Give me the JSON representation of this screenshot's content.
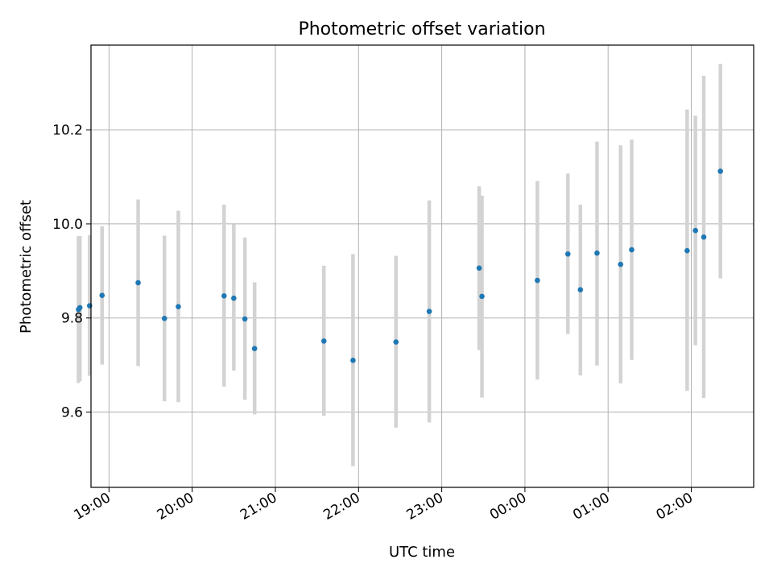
{
  "chart_data": {
    "type": "scatter",
    "title": "Photometric offset variation",
    "xlabel": "UTC time",
    "ylabel": "Photometric offset",
    "x_axis": "time (hours, UTC)",
    "xlim": [
      "18:47",
      "02:45"
    ],
    "ylim": [
      9.44,
      10.38
    ],
    "x_ticks": [
      "19:00",
      "20:00",
      "21:00",
      "22:00",
      "23:00",
      "00:00",
      "01:00",
      "02:00"
    ],
    "y_ticks": [
      9.6,
      9.8,
      10.0,
      10.2
    ],
    "grid": true,
    "point_color": "#1f77b4",
    "errorbar_color": "#d3d3d3",
    "points": [
      {
        "time": "18:38",
        "offset": 9.818,
        "low": 9.662,
        "high": 9.974
      },
      {
        "time": "18:39",
        "offset": 9.822,
        "low": 9.666,
        "high": 9.974
      },
      {
        "time": "18:46",
        "offset": 9.826,
        "low": 9.677,
        "high": 9.976
      },
      {
        "time": "18:55",
        "offset": 9.848,
        "low": 9.701,
        "high": 9.995
      },
      {
        "time": "19:21",
        "offset": 9.875,
        "low": 9.698,
        "high": 10.052
      },
      {
        "time": "19:40",
        "offset": 9.799,
        "low": 9.623,
        "high": 9.975
      },
      {
        "time": "19:50",
        "offset": 9.824,
        "low": 9.621,
        "high": 10.028
      },
      {
        "time": "20:23",
        "offset": 9.847,
        "low": 9.654,
        "high": 10.041
      },
      {
        "time": "20:30",
        "offset": 9.842,
        "low": 9.688,
        "high": 9.999
      },
      {
        "time": "20:38",
        "offset": 9.798,
        "low": 9.626,
        "high": 9.971
      },
      {
        "time": "20:45",
        "offset": 9.735,
        "low": 9.595,
        "high": 9.876
      },
      {
        "time": "21:35",
        "offset": 9.751,
        "low": 9.592,
        "high": 9.911
      },
      {
        "time": "21:56",
        "offset": 9.71,
        "low": 9.485,
        "high": 9.936
      },
      {
        "time": "22:27",
        "offset": 9.749,
        "low": 9.567,
        "high": 9.932
      },
      {
        "time": "22:51",
        "offset": 9.814,
        "low": 9.578,
        "high": 10.05
      },
      {
        "time": "23:27",
        "offset": 9.906,
        "low": 9.732,
        "high": 10.08
      },
      {
        "time": "23:29",
        "offset": 9.846,
        "low": 9.631,
        "high": 10.06
      },
      {
        "time": "00:09",
        "offset": 9.88,
        "low": 9.669,
        "high": 10.091
      },
      {
        "time": "00:31",
        "offset": 9.936,
        "low": 9.766,
        "high": 10.107
      },
      {
        "time": "00:40",
        "offset": 9.86,
        "low": 9.678,
        "high": 10.041
      },
      {
        "time": "00:52",
        "offset": 9.938,
        "low": 9.699,
        "high": 10.175
      },
      {
        "time": "01:09",
        "offset": 9.914,
        "low": 9.661,
        "high": 10.167
      },
      {
        "time": "01:17",
        "offset": 9.945,
        "low": 9.711,
        "high": 10.179
      },
      {
        "time": "01:57",
        "offset": 9.943,
        "low": 9.645,
        "high": 10.243
      },
      {
        "time": "02:03",
        "offset": 9.986,
        "low": 9.742,
        "high": 10.23
      },
      {
        "time": "02:09",
        "offset": 9.972,
        "low": 9.63,
        "high": 10.315
      },
      {
        "time": "02:21",
        "offset": 10.112,
        "low": 9.884,
        "high": 10.34
      }
    ]
  }
}
